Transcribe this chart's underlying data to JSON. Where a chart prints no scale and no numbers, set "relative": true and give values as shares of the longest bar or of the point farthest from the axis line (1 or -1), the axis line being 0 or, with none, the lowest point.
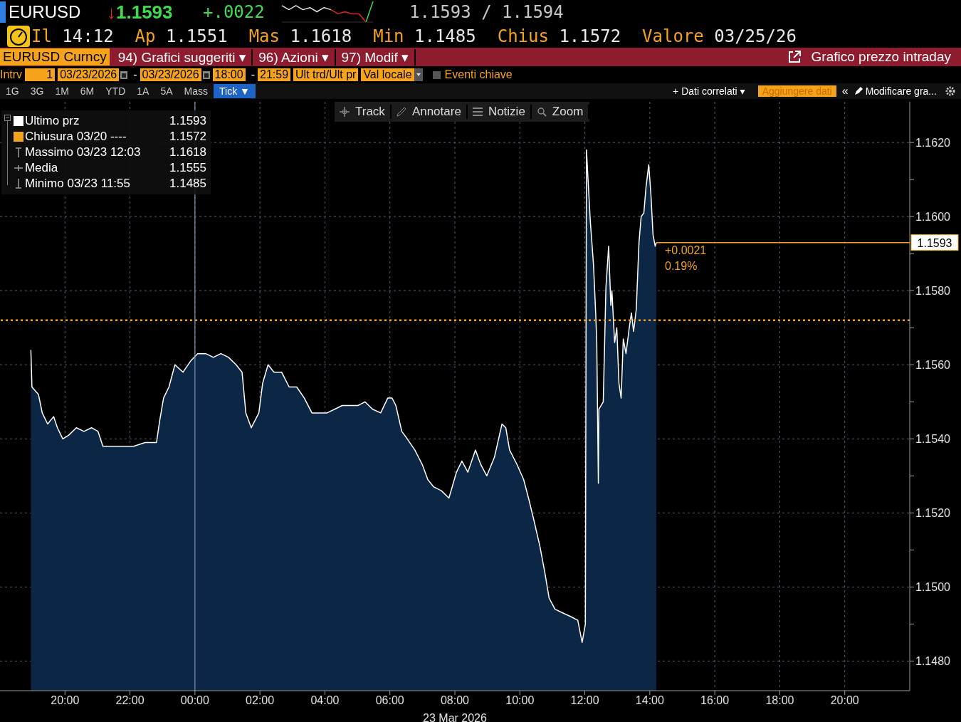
{
  "chart_data": [
    {
      "type": "area",
      "title": "EURUSD",
      "subtitle": "Grafico prezzo intraday",
      "xlabel": "23 Mar 2026",
      "x": [
        "2026-03-22T18:57",
        "2026-03-22T18:59",
        "2026-03-22T19:11",
        "2026-03-22T19:18",
        "2026-03-22T19:28",
        "2026-03-22T19:39",
        "2026-03-22T19:46",
        "2026-03-22T19:56",
        "2026-03-22T20:07",
        "2026-03-22T20:21",
        "2026-03-22T20:35",
        "2026-03-22T20:49",
        "2026-03-22T21:01",
        "2026-03-22T21:10",
        "2026-03-22T21:24",
        "2026-03-22T21:45",
        "2026-03-22T22:07",
        "2026-03-22T22:28",
        "2026-03-22T22:49",
        "2026-03-22T22:55",
        "2026-03-22T23:02",
        "2026-03-22T23:12",
        "2026-03-22T23:23",
        "2026-03-22T23:38",
        "2026-03-22T23:52",
        "2026-03-23T00:05",
        "2026-03-23T00:20",
        "2026-03-23T00:34",
        "2026-03-23T00:48",
        "2026-03-23T01:02",
        "2026-03-23T01:16",
        "2026-03-23T01:27",
        "2026-03-23T01:34",
        "2026-03-23T01:44",
        "2026-03-23T01:58",
        "2026-03-23T02:05",
        "2026-03-23T02:15",
        "2026-03-23T02:26",
        "2026-03-23T02:40",
        "2026-03-23T02:54",
        "2026-03-23T03:08",
        "2026-03-23T03:22",
        "2026-03-23T03:36",
        "2026-03-23T03:50",
        "2026-03-23T04:04",
        "2026-03-23T04:18",
        "2026-03-23T04:32",
        "2026-03-23T04:46",
        "2026-03-23T05:01",
        "2026-03-23T05:14",
        "2026-03-23T05:28",
        "2026-03-23T05:43",
        "2026-03-23T05:56",
        "2026-03-23T06:04",
        "2026-03-23T06:11",
        "2026-03-23T06:22",
        "2026-03-23T06:32",
        "2026-03-23T06:46",
        "2026-03-23T07:00",
        "2026-03-23T07:10",
        "2026-03-23T07:21",
        "2026-03-23T07:35",
        "2026-03-23T07:49",
        "2026-03-23T08:03",
        "2026-03-23T08:13",
        "2026-03-23T08:24",
        "2026-03-23T08:38",
        "2026-03-23T08:48",
        "2026-03-23T08:59",
        "2026-03-23T09:13",
        "2026-03-23T09:27",
        "2026-03-23T09:34",
        "2026-03-23T09:41",
        "2026-03-23T09:55",
        "2026-03-23T10:07",
        "2026-03-23T10:16",
        "2026-03-23T10:26",
        "2026-03-23T10:37",
        "2026-03-23T10:46",
        "2026-03-23T10:54",
        "2026-03-23T11:05",
        "2026-03-23T11:19",
        "2026-03-23T11:34",
        "2026-03-23T11:47",
        "2026-03-23T11:55",
        "2026-03-23T12:01",
        "2026-03-23T12:03",
        "2026-03-23T12:10",
        "2026-03-23T12:16",
        "2026-03-23T12:20",
        "2026-03-23T12:22",
        "2026-03-23T12:25",
        "2026-03-23T12:26",
        "2026-03-23T12:34",
        "2026-03-23T12:39",
        "2026-03-23T12:44",
        "2026-03-23T12:48",
        "2026-03-23T12:50",
        "2026-03-23T12:55",
        "2026-03-23T12:59",
        "2026-03-23T13:03",
        "2026-03-23T13:07",
        "2026-03-23T13:11",
        "2026-03-23T13:16",
        "2026-03-23T13:22",
        "2026-03-23T13:26",
        "2026-03-23T13:30",
        "2026-03-23T13:35",
        "2026-03-23T13:40",
        "2026-03-23T13:44",
        "2026-03-23T13:49",
        "2026-03-23T13:53",
        "2026-03-23T13:58",
        "2026-03-23T14:02",
        "2026-03-23T14:06",
        "2026-03-23T14:10",
        "2026-03-23T14:12"
      ],
      "series": [
        {
          "name": "Ultimo prz",
          "color": "#ffffff",
          "values": [
            1.1564,
            1.1554,
            1.1552,
            1.1547,
            1.1544,
            1.1546,
            1.1543,
            1.154,
            1.1541,
            1.1543,
            1.1542,
            1.1543,
            1.1542,
            1.1538,
            1.1538,
            1.1538,
            1.1538,
            1.1539,
            1.1539,
            1.1545,
            1.1551,
            1.1554,
            1.156,
            1.1558,
            1.1561,
            1.1563,
            1.1563,
            1.1562,
            1.1563,
            1.1562,
            1.156,
            1.1558,
            1.1547,
            1.1543,
            1.1547,
            1.1555,
            1.156,
            1.1558,
            1.1558,
            1.1554,
            1.1554,
            1.1551,
            1.1547,
            1.1547,
            1.1547,
            1.1548,
            1.1549,
            1.1549,
            1.1549,
            1.155,
            1.1548,
            1.1547,
            1.1551,
            1.1551,
            1.1549,
            1.1542,
            1.154,
            1.1537,
            1.1533,
            1.1529,
            1.1527,
            1.1526,
            1.1524,
            1.1531,
            1.1534,
            1.1531,
            1.1537,
            1.1533,
            1.153,
            1.1535,
            1.1544,
            1.1543,
            1.1537,
            1.1533,
            1.1529,
            1.1524,
            1.1518,
            1.1511,
            1.1504,
            1.1497,
            1.1494,
            1.1493,
            1.1492,
            1.1491,
            1.1485,
            1.149,
            1.1618,
            1.1599,
            1.1587,
            1.1574,
            1.1566,
            1.1528,
            1.1548,
            1.155,
            1.1581,
            1.1592,
            1.1576,
            1.158,
            1.1566,
            1.157,
            1.1555,
            1.1551,
            1.1567,
            1.1563,
            1.157,
            1.1574,
            1.1569,
            1.1575,
            1.1593,
            1.16,
            1.1601,
            1.1608,
            1.1614,
            1.1606,
            1.1595,
            1.1592,
            1.1593
          ]
        }
      ],
      "xlim": [
        "2026-03-22T18:00",
        "2026-03-23T22:00"
      ],
      "xticks": [
        {
          "value": "2026-03-22T20:00",
          "label": "20:00"
        },
        {
          "value": "2026-03-22T22:00",
          "label": "22:00"
        },
        {
          "value": "2026-03-23T00:00",
          "label": "00:00"
        },
        {
          "value": "2026-03-23T02:00",
          "label": "02:00"
        },
        {
          "value": "2026-03-23T04:00",
          "label": "04:00"
        },
        {
          "value": "2026-03-23T06:00",
          "label": "06:00"
        },
        {
          "value": "2026-03-23T08:00",
          "label": "08:00"
        },
        {
          "value": "2026-03-23T10:00",
          "label": "10:00"
        },
        {
          "value": "2026-03-23T12:00",
          "label": "12:00"
        },
        {
          "value": "2026-03-23T14:00",
          "label": "14:00"
        },
        {
          "value": "2026-03-23T16:00",
          "label": "16:00"
        },
        {
          "value": "2026-03-23T18:00",
          "label": "18:00"
        },
        {
          "value": "2026-03-23T20:00",
          "label": "20:00"
        }
      ],
      "ylim": [
        1.1472,
        1.1631
      ],
      "yticks": [
        {
          "value": 1.148,
          "label": "1.1480"
        },
        {
          "value": 1.149,
          "label": null
        },
        {
          "value": 1.15,
          "label": "1.1500"
        },
        {
          "value": 1.151,
          "label": null
        },
        {
          "value": 1.152,
          "label": "1.1520"
        },
        {
          "value": 1.153,
          "label": null
        },
        {
          "value": 1.154,
          "label": "1.1540"
        },
        {
          "value": 1.155,
          "label": null
        },
        {
          "value": 1.156,
          "label": "1.1560"
        },
        {
          "value": 1.157,
          "label": null
        },
        {
          "value": 1.158,
          "label": "1.1580"
        },
        {
          "value": 1.159,
          "label": null
        },
        {
          "value": 1.16,
          "label": "1.1600"
        },
        {
          "value": 1.161,
          "label": null
        },
        {
          "value": 1.162,
          "label": "1.1620"
        }
      ],
      "grid": true,
      "legend": "top left",
      "ref_lines": [
        {
          "axis": "y",
          "value": 1.1572,
          "label": "Chiusura 03/20 ----",
          "color": "#f5a31a",
          "line_style": "dotted"
        },
        {
          "axis": "y",
          "value": 1.1593,
          "label": "1.1593",
          "color": "#f5a31a",
          "line_style": "solid"
        },
        {
          "axis": "x",
          "value": "2026-03-23T00:00",
          "color": "#7f93b3",
          "line_style": "solid"
        }
      ],
      "annotations": [
        "↓1.1593",
        "+.0022",
        "1.1593 / 1.1594",
        "Il 14:12",
        "Ap 1.1551",
        "Mas 1.1618",
        "Min 1.1485",
        "Chius 1.1572",
        "Valore 03/25/26",
        "EURUSD Curncy",
        "94) Grafici suggeriti ▾",
        "96) Azioni ▾",
        "97) Modif ▾",
        "Intrv",
        "1",
        "03/23/2026",
        "-",
        "03/23/2026",
        "18:00",
        "-",
        "21:59",
        "Ult trd/Ult pr",
        "Val locale",
        "Eventi chiave",
        "1G",
        "3G",
        "1M",
        "6M",
        "YTD",
        "1A",
        "5A",
        "Mass",
        "Tick ▼",
        "+ Dati correlati ▾",
        "Aggiungere dati",
        "«",
        "Modificare gra...",
        "Track",
        "Annotare",
        "Notizie",
        "Zoom",
        "1.1593",
        "1.1572",
        "Massimo 03/23 12:03 1.1618",
        "Media 1.1555",
        "Minimo 03/23 11:55 1.1485",
        {
          "text": "+0.0021",
          "x": "2026-03-23T14:12",
          "y": 1.1593
        },
        {
          "text": "0.19%",
          "x": "2026-03-23T14:12",
          "y": 1.1593
        }
      ]
    },
    {
      "type": "line",
      "relative": true,
      "categories": [
        null,
        null,
        null,
        null,
        null,
        null,
        null,
        null,
        null,
        null,
        null,
        null,
        null,
        null
      ],
      "series": [
        {
          "color": "#e0e0e0",
          "values": [
            0.8,
            0.6,
            0.8,
            0.6,
            0.7,
            0.5,
            0.7,
            0.6,
            null,
            null,
            null,
            null,
            null,
            null
          ]
        },
        {
          "color": "#e02424",
          "values": [
            null,
            null,
            null,
            null,
            null,
            null,
            null,
            0.6,
            0.4,
            0.5,
            0.4,
            0.4,
            0,
            null
          ]
        },
        {
          "color": "#3fdc4a",
          "values": [
            null,
            null,
            null,
            null,
            null,
            null,
            null,
            null,
            null,
            null,
            null,
            null,
            0,
            1
          ]
        }
      ]
    }
  ]
}
